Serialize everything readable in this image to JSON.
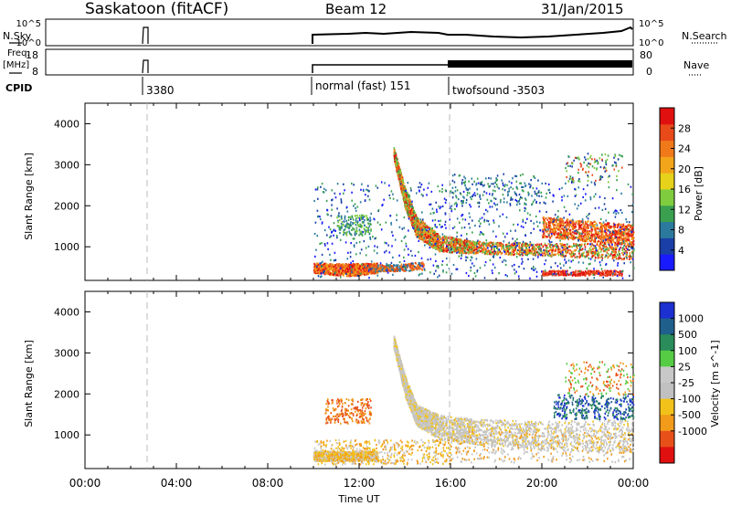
{
  "header": {
    "site": "Saskatoon (fitACF)",
    "beam": "Beam 12",
    "date": "31/Jan/2015"
  },
  "left_labels": {
    "nsky": "N.Sky",
    "freq_line1": "Freq.",
    "freq_line2": "[MHz]",
    "cpid": "CPID"
  },
  "right_labels": {
    "nsearch": "N.Search",
    "nave": "Nave"
  },
  "cpid_labels": [
    "3380",
    "normal (fast) 151",
    "twofsound -3503"
  ],
  "small_axes": {
    "nsky_ticks": [
      "10^5",
      "10^0"
    ],
    "nsearch_ticks": [
      "10^5",
      "10^0"
    ],
    "freq_ticks": [
      "18",
      "8"
    ],
    "nave_ticks": [
      "80",
      "0"
    ]
  },
  "colors": {
    "power": [
      "#1a1aff",
      "#1a3fa6",
      "#2b7a9e",
      "#3aa050",
      "#7fcc3f",
      "#e6d21a",
      "#f2a51a",
      "#f07a1a",
      "#e84a1a",
      "#e01010"
    ],
    "velocity": [
      "#1c2fd1",
      "#1f5f8c",
      "#2a8c5a",
      "#55cc44",
      "#c8c8c8",
      "#c0c0c0",
      "#f2c21a",
      "#f29a1a",
      "#e8501a",
      "#e01010"
    ]
  },
  "chart_data": [
    {
      "type": "line",
      "title": "N.Sky / N.Search",
      "xlabel": "",
      "ylabel": "N.Sky",
      "x": [
        "02:50",
        "03:05",
        "10:00",
        "12:00",
        "14:00",
        "16:00",
        "18:00",
        "20:00",
        "22:00",
        "23:50"
      ],
      "series": [
        {
          "name": "N.Sky",
          "values": [
            30000.0,
            30000.0,
            300,
            400,
            500,
            800,
            300,
            300,
            600,
            3000
          ]
        }
      ],
      "ylim": [
        "10^0",
        "10^5"
      ],
      "xlim": [
        "00:00",
        "00:00"
      ]
    },
    {
      "type": "line",
      "title": "Freq. / Nave",
      "ylabel": "Freq. [MHz]",
      "x": [
        "02:50",
        "03:05",
        "10:00",
        "16:00",
        "16:05",
        "23:59"
      ],
      "series": [
        {
          "name": "Freq.",
          "values": [
            13,
            13,
            10.5,
            10.5,
            13,
            13
          ]
        }
      ],
      "ylim": [
        8,
        18
      ],
      "xlim": [
        "00:00",
        "00:00"
      ]
    },
    {
      "type": "heatmap",
      "title": "Power",
      "xlabel": "Time UT",
      "ylabel": "Slant Range [km]",
      "x_ticks": [
        "00:00",
        "04:00",
        "08:00",
        "12:00",
        "16:00",
        "20:00",
        "00:00"
      ],
      "y_ticks": [
        1000,
        2000,
        3000,
        4000
      ],
      "colorbar_label": "Power [dB]",
      "colorbar_ticks": [
        4,
        8,
        12,
        16,
        20,
        24,
        28
      ],
      "features": [
        {
          "t_start": 10.0,
          "t_end": 12.8,
          "range_km": 500,
          "power_db": 24
        },
        {
          "t_start": 13.5,
          "t_end": 24.0,
          "range_km": 1000,
          "power_db": 26
        },
        {
          "t_start": 13.5,
          "t_end": 16.0,
          "range_km": 3300,
          "power_db": 12
        },
        {
          "t_start": 20.0,
          "t_end": 24.0,
          "range_km": 1500,
          "power_db": 24
        },
        {
          "t_start": 20.0,
          "t_end": 23.5,
          "range_km": 400,
          "power_db": 28
        }
      ],
      "xlim": [
        "00:00",
        "00:00"
      ],
      "ylim": [
        180,
        4500
      ]
    },
    {
      "type": "heatmap",
      "title": "Velocity",
      "xlabel": "Time UT",
      "ylabel": "Slant Range [km]",
      "x_ticks": [
        "00:00",
        "04:00",
        "08:00",
        "12:00",
        "16:00",
        "20:00",
        "00:00"
      ],
      "y_ticks": [
        1000,
        2000,
        3000,
        4000
      ],
      "colorbar_label": "Velocity [m s^-1]",
      "colorbar_ticks": [
        "1000",
        "500",
        "100",
        "25",
        "-25",
        "-100",
        "-500",
        "-1000"
      ],
      "features": [
        {
          "t_start": 10.0,
          "t_end": 12.8,
          "range_km": 500,
          "velocity": -100
        },
        {
          "t_start": 13.5,
          "t_end": 24.0,
          "range_km": 1000,
          "velocity": 0
        },
        {
          "t_start": 10.5,
          "t_end": 12.5,
          "range_km": 1700,
          "velocity": -300
        },
        {
          "t_start": 20.5,
          "t_end": 24.0,
          "range_km": 1700,
          "velocity": 800
        },
        {
          "t_start": 21.0,
          "t_end": 24.0,
          "range_km": 2400,
          "velocity": -500
        }
      ],
      "xlim": [
        "00:00",
        "00:00"
      ],
      "ylim": [
        180,
        4500
      ]
    }
  ]
}
